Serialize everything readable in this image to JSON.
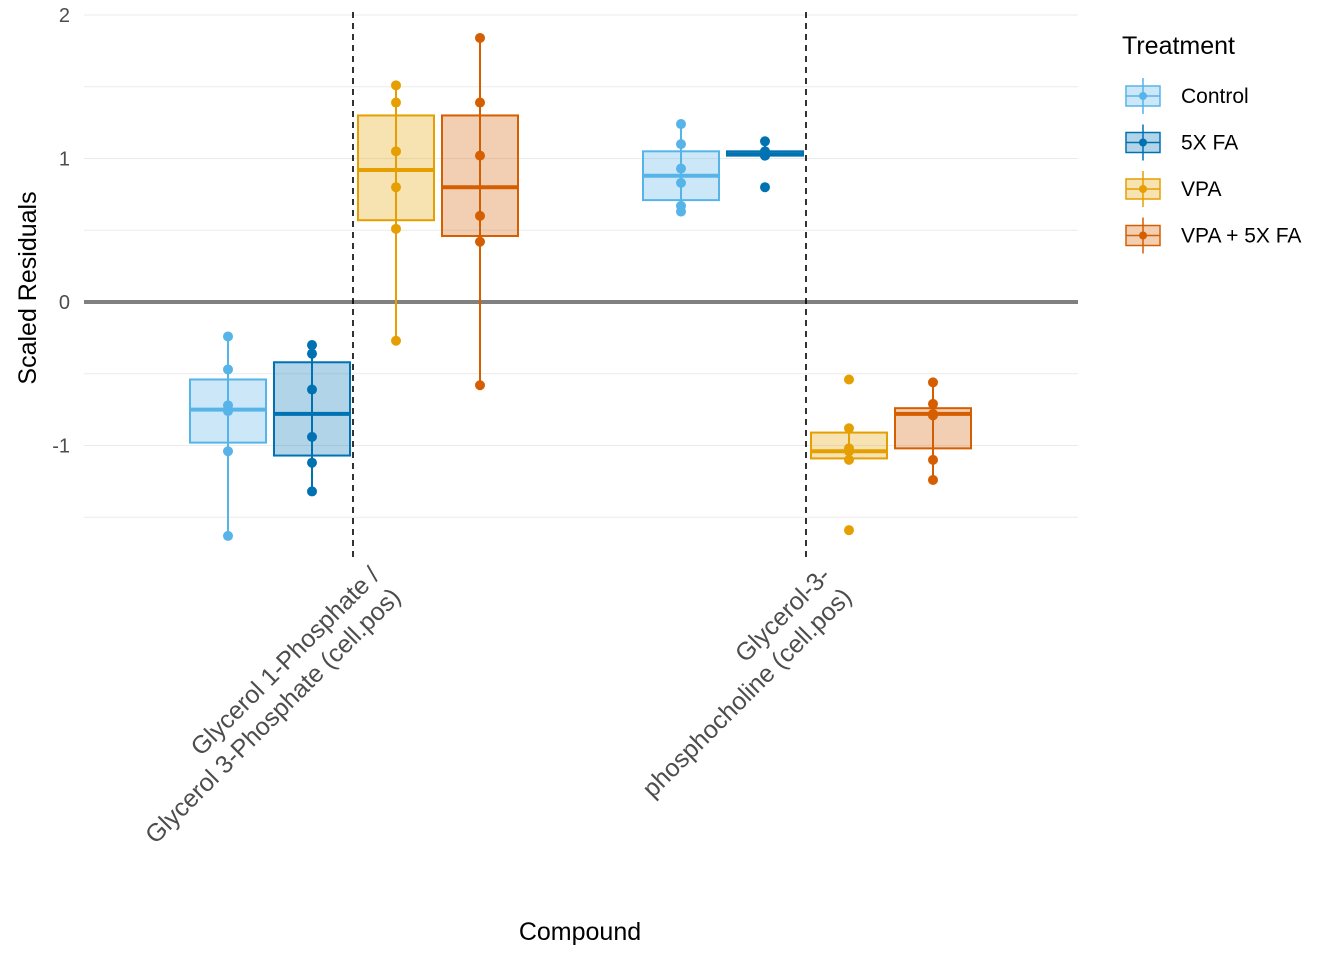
{
  "chart_data": {
    "type": "box",
    "xlabel": "Compound",
    "ylabel": "Scaled Residuals",
    "ylim": [
      -1.8,
      2.0
    ],
    "y_ticks": [
      -1,
      0,
      1,
      2
    ],
    "y_minor_gridlines": [
      -1.5,
      -0.5,
      0.5,
      1.5
    ],
    "reference_line_y": 0,
    "grid": true,
    "legend": {
      "title": "Treatment",
      "placement": "right",
      "entries": [
        "Control",
        "5X FA",
        "VPA",
        "VPA + 5X FA"
      ]
    },
    "categories": [
      [
        "Glycerol 1-Phosphate /",
        "Glycerol 3-Phosphate (cell.pos)"
      ],
      [
        "Glycerol-3-",
        "phosphocholine (cell.pos)"
      ]
    ],
    "series": [
      {
        "name": "Control",
        "color": "#56B4E9",
        "boxes": [
          {
            "category": 0,
            "whisker_low": -1.63,
            "q1": -0.98,
            "median": -0.75,
            "q3": -0.54,
            "whisker_high": -0.24,
            "points": [
              -0.24,
              -0.47,
              -0.72,
              -0.76,
              -1.04,
              -1.63
            ]
          },
          {
            "category": 1,
            "whisker_low": 0.63,
            "q1": 0.71,
            "median": 0.88,
            "q3": 1.05,
            "whisker_high": 1.24,
            "points": [
              1.24,
              1.1,
              0.93,
              0.83,
              0.67,
              0.63
            ]
          }
        ]
      },
      {
        "name": "5X FA",
        "color": "#0072B2",
        "boxes": [
          {
            "category": 0,
            "whisker_low": -1.32,
            "q1": -1.07,
            "median": -0.78,
            "q3": -0.42,
            "whisker_high": -0.3,
            "points": [
              -0.3,
              -0.36,
              -0.61,
              -0.94,
              -1.12,
              -1.32
            ]
          },
          {
            "category": 1,
            "whisker_low": 1.01,
            "q1": 1.02,
            "median": 1.03,
            "q3": 1.05,
            "whisker_high": 1.12,
            "points": [
              1.12,
              1.05,
              1.03,
              1.02,
              1.02,
              0.8
            ],
            "outliers": [
              0.8
            ]
          }
        ]
      },
      {
        "name": "VPA",
        "color": "#E69F00",
        "boxes": [
          {
            "category": 0,
            "whisker_low": -0.27,
            "q1": 0.57,
            "median": 0.92,
            "q3": 1.3,
            "whisker_high": 1.51,
            "points": [
              1.51,
              1.39,
              1.05,
              0.8,
              0.51,
              -0.27
            ]
          },
          {
            "category": 1,
            "whisker_low": -1.1,
            "q1": -1.09,
            "median": -1.04,
            "q3": -0.91,
            "whisker_high": -0.88,
            "points": [
              -0.54,
              -0.88,
              -1.02,
              -1.04,
              -1.1,
              -1.59
            ],
            "outliers": [
              -0.54,
              -1.59
            ]
          }
        ]
      },
      {
        "name": "VPA + 5X FA",
        "color": "#D55E00",
        "boxes": [
          {
            "category": 0,
            "whisker_low": -0.58,
            "q1": 0.46,
            "median": 0.8,
            "q3": 1.3,
            "whisker_high": 1.84,
            "points": [
              1.84,
              1.39,
              1.02,
              0.6,
              0.42,
              -0.58
            ]
          },
          {
            "category": 1,
            "whisker_low": -1.24,
            "q1": -1.02,
            "median": -0.78,
            "q3": -0.74,
            "whisker_high": -0.56,
            "points": [
              -0.56,
              -0.71,
              -0.78,
              -0.79,
              -1.1,
              -1.24
            ]
          }
        ]
      }
    ]
  }
}
